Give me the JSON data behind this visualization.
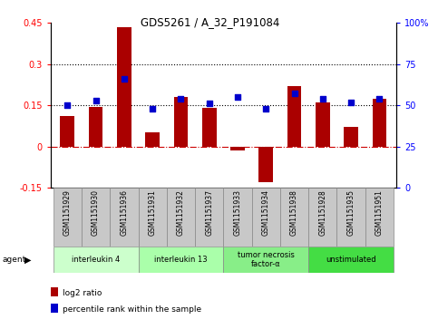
{
  "title": "GDS5261 / A_32_P191084",
  "samples": [
    "GSM1151929",
    "GSM1151930",
    "GSM1151936",
    "GSM1151931",
    "GSM1151932",
    "GSM1151937",
    "GSM1151933",
    "GSM1151934",
    "GSM1151938",
    "GSM1151928",
    "GSM1151935",
    "GSM1151951"
  ],
  "log2_ratio": [
    0.11,
    0.145,
    0.435,
    0.05,
    0.18,
    0.14,
    -0.015,
    -0.13,
    0.22,
    0.16,
    0.07,
    0.175
  ],
  "percentile_rank": [
    50,
    53,
    66,
    48,
    54,
    51,
    55,
    48,
    57,
    54,
    52,
    54
  ],
  "ylim_left": [
    -0.15,
    0.45
  ],
  "ylim_right": [
    0,
    100
  ],
  "yticks_left": [
    -0.15,
    0,
    0.15,
    0.3,
    0.45
  ],
  "yticks_right": [
    0,
    25,
    50,
    75,
    100
  ],
  "hlines": [
    0.15,
    0.3
  ],
  "agent_groups": [
    {
      "label": "interleukin 4",
      "start": 0,
      "end": 3,
      "color": "#ccffcc"
    },
    {
      "label": "interleukin 13",
      "start": 3,
      "end": 6,
      "color": "#aaffaa"
    },
    {
      "label": "tumor necrosis\nfactor-α",
      "start": 6,
      "end": 9,
      "color": "#88ee88"
    },
    {
      "label": "unstimulated",
      "start": 9,
      "end": 12,
      "color": "#44dd44"
    }
  ],
  "bar_color": "#aa0000",
  "dot_color": "#0000cc",
  "zero_line_color": "#cc0000",
  "hline_color": "#000000",
  "background_color": "#ffffff",
  "bar_width": 0.5,
  "sample_box_color": "#c8c8c8",
  "ytick_left_labels": [
    "-0.15",
    "0",
    "0.15",
    "0.3",
    "0.45"
  ],
  "ytick_right_labels": [
    "0",
    "25",
    "50",
    "75",
    "100%"
  ]
}
